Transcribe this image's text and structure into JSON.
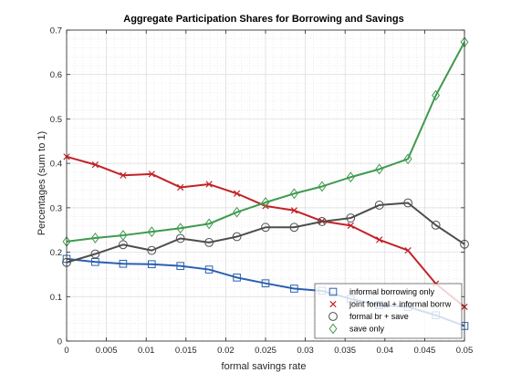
{
  "chart_data": {
    "type": "line",
    "title": "Aggregate Participation Shares for Borrowing and Savings",
    "xlabel": "formal savings rate",
    "ylabel": "Percentages (sum to 1)",
    "xlim": [
      0,
      0.05
    ],
    "ylim": [
      0,
      0.7
    ],
    "xticks": [
      "0",
      "0.005",
      "0.01",
      "0.015",
      "0.02",
      "0.025",
      "0.03",
      "0.035",
      "0.04",
      "0.045",
      "0.05"
    ],
    "yticks": [
      "0",
      "0.1",
      "0.2",
      "0.3",
      "0.4",
      "0.5",
      "0.6",
      "0.7"
    ],
    "grid": "on",
    "minor_grid": "on",
    "legend_position": "bottom-right",
    "x": [
      0,
      0.0036,
      0.0071,
      0.0107,
      0.0143,
      0.0179,
      0.0214,
      0.025,
      0.0286,
      0.0321,
      0.0357,
      0.0393,
      0.0429,
      0.0464,
      0.05
    ],
    "series": [
      {
        "name": "informal borrowing only",
        "color": "#2B5FB0",
        "marker": "square",
        "values": [
          0.185,
          0.178,
          0.174,
          0.173,
          0.169,
          0.161,
          0.143,
          0.13,
          0.118,
          0.113,
          0.095,
          0.081,
          0.077,
          0.058,
          0.034
        ]
      },
      {
        "name": "joint formal + informal borrw",
        "color": "#C42127",
        "marker": "x",
        "values": [
          0.415,
          0.397,
          0.373,
          0.376,
          0.346,
          0.353,
          0.332,
          0.304,
          0.294,
          0.27,
          0.26,
          0.228,
          0.204,
          0.129,
          0.077
        ]
      },
      {
        "name": "formal br + save",
        "color": "#4D4D4D",
        "marker": "circle",
        "values": [
          0.177,
          0.196,
          0.217,
          0.204,
          0.231,
          0.222,
          0.235,
          0.256,
          0.256,
          0.269,
          0.277,
          0.306,
          0.311,
          0.261,
          0.218
        ]
      },
      {
        "name": "save only",
        "color": "#3E9A4E",
        "marker": "diamond",
        "values": [
          0.224,
          0.232,
          0.238,
          0.246,
          0.254,
          0.264,
          0.29,
          0.312,
          0.332,
          0.348,
          0.369,
          0.387,
          0.41,
          0.553,
          0.673
        ]
      }
    ]
  }
}
